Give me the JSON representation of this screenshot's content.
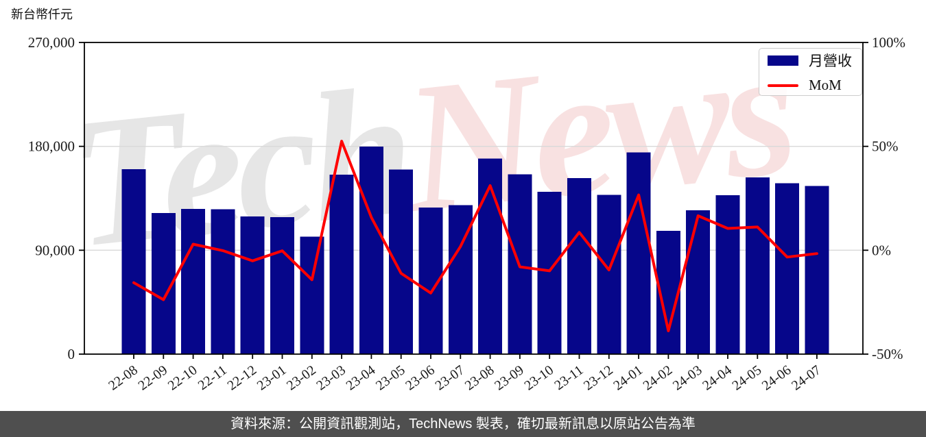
{
  "page": {
    "unit_label": "新台幣仟元",
    "footer_text": "資料來源：公開資訊觀測站，TechNews 製表，確切最新訊息以原站公告為準"
  },
  "watermark": {
    "part1": "Tech",
    "part2": "News"
  },
  "legend": {
    "revenue_label": "月營收",
    "mom_label": "MoM"
  },
  "colors": {
    "bar": "#06068a",
    "line": "#ff0000",
    "grid": "#d9d9d9",
    "axis": "#000000",
    "tick_text": "#1a1a1a",
    "footer_bg": "#4f4f4f",
    "legend_border": "#cccccc"
  },
  "chart_data": {
    "type": "bar+line combo",
    "title": "",
    "categories": [
      "22-08",
      "22-09",
      "22-10",
      "22-11",
      "22-12",
      "23-01",
      "23-02",
      "23-03",
      "23-04",
      "23-05",
      "23-06",
      "23-07",
      "23-08",
      "23-09",
      "23-10",
      "23-11",
      "23-12",
      "24-01",
      "24-02",
      "24-03",
      "24-04",
      "24-05",
      "24-06",
      "24-07"
    ],
    "series": [
      {
        "name": "月營收",
        "type": "bar",
        "axis": "left",
        "unit": "新台幣仟元",
        "values": [
          160300,
          122200,
          125800,
          125600,
          119200,
          118800,
          101900,
          155400,
          179900,
          159900,
          126900,
          129200,
          169400,
          155900,
          140500,
          152600,
          138100,
          174800,
          106900,
          124600,
          137700,
          153100,
          148000,
          145600
        ]
      },
      {
        "name": "MoM",
        "type": "line",
        "axis": "right",
        "unit": "%",
        "values": [
          -15.6,
          -23.8,
          2.9,
          -0.2,
          -5.1,
          -0.3,
          -14.2,
          52.5,
          15.8,
          -11.1,
          -20.6,
          1.8,
          31.1,
          -8.0,
          -9.9,
          8.6,
          -9.5,
          26.6,
          -38.8,
          16.6,
          10.5,
          11.2,
          -3.3,
          -1.6
        ]
      }
    ],
    "left_axis": {
      "min": 0,
      "max": 270000,
      "ticks": [
        {
          "label": "0",
          "value": 0
        },
        {
          "label": "90,000",
          "value": 90000
        },
        {
          "label": "180,000",
          "value": 180000
        },
        {
          "label": "270,000",
          "value": 270000
        }
      ]
    },
    "right_axis": {
      "min": -50,
      "max": 100,
      "ticks": [
        {
          "label": "-50%",
          "value": -50
        },
        {
          "label": "0%",
          "value": 0
        },
        {
          "label": "50%",
          "value": 50
        },
        {
          "label": "100%",
          "value": 100
        }
      ]
    },
    "gridline_values": [
      90000,
      180000
    ],
    "grid": "horizontal gridlines at left-axis 90,000 and 180,000 (right-axis 0% and 50%)",
    "legend_position": "top-right"
  }
}
